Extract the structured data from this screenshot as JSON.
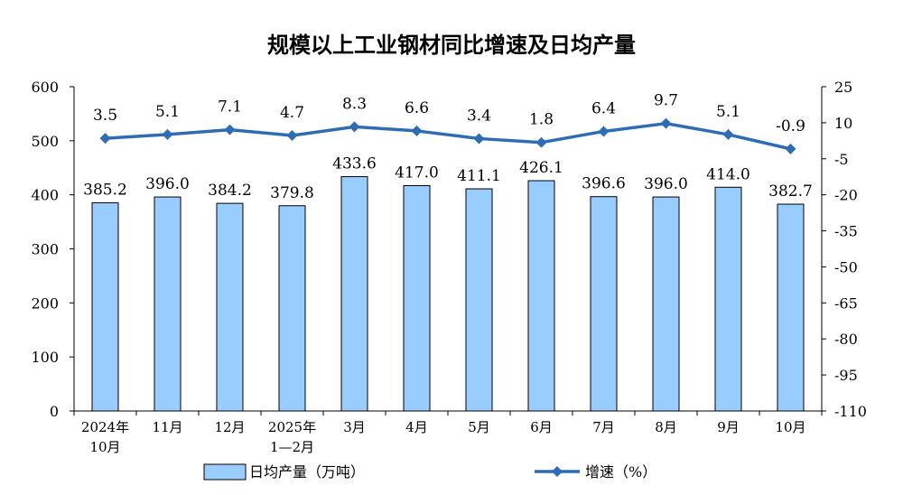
{
  "chart_data": {
    "type": "bar",
    "title": "规模以上工业钢材同比增速及日均产量",
    "categories": [
      [
        "2024年",
        "10月"
      ],
      [
        "11月"
      ],
      [
        "12月"
      ],
      [
        "2025年",
        "1—2月"
      ],
      [
        "3月"
      ],
      [
        "4月"
      ],
      [
        "5月"
      ],
      [
        "6月"
      ],
      [
        "7月"
      ],
      [
        "8月"
      ],
      [
        "9月"
      ],
      [
        "10月"
      ]
    ],
    "series": [
      {
        "name": "日均产量（万吨）",
        "type": "bar",
        "axis": "left",
        "color": "#99CCFF",
        "values": [
          385.2,
          396.0,
          384.2,
          379.8,
          433.6,
          417.0,
          411.1,
          426.1,
          396.6,
          396.0,
          414.0,
          382.7
        ],
        "labels": [
          "385.2",
          "396.0",
          "384.2",
          "379.8",
          "433.6",
          "417.0",
          "411.1",
          "426.1",
          "396.6",
          "396.0",
          "414.0",
          "382.7"
        ]
      },
      {
        "name": "增速（%）",
        "type": "line",
        "axis": "right",
        "color": "#2E6DB4",
        "values": [
          3.5,
          5.1,
          7.1,
          4.7,
          8.3,
          6.6,
          3.4,
          1.8,
          6.4,
          9.7,
          5.1,
          -0.9
        ],
        "labels": [
          "3.5",
          "5.1",
          "7.1",
          "4.7",
          "8.3",
          "6.6",
          "3.4",
          "1.8",
          "6.4",
          "9.7",
          "5.1",
          "-0.9"
        ]
      }
    ],
    "y_left": {
      "ylim": [
        0,
        600
      ],
      "ticks": [
        0,
        100,
        200,
        300,
        400,
        500,
        600
      ]
    },
    "y_right": {
      "ylim": [
        -110,
        25
      ],
      "ticks": [
        25,
        10,
        -5,
        -20,
        -35,
        -50,
        -65,
        -80,
        -95,
        -110
      ]
    },
    "legend_placement": "bottom",
    "grid": false
  }
}
